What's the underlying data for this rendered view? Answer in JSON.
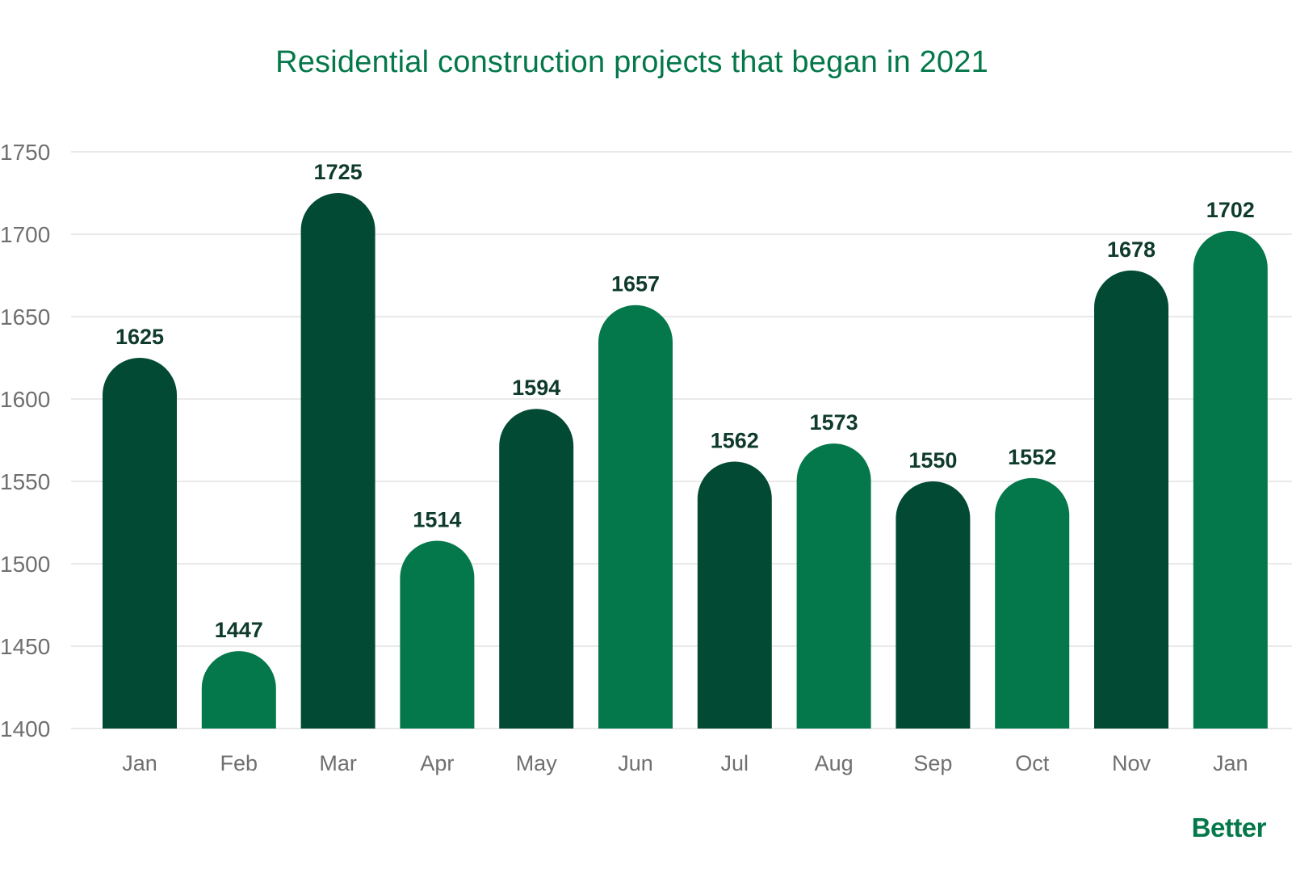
{
  "chart_data": {
    "type": "bar",
    "title": "Residential construction projects that began in 2021",
    "xlabel": "",
    "ylabel": "",
    "categories": [
      "Jan",
      "Feb",
      "Mar",
      "Apr",
      "May",
      "Jun",
      "Jul",
      "Aug",
      "Sep",
      "Oct",
      "Nov",
      "Jan"
    ],
    "values": [
      1625,
      1447,
      1725,
      1514,
      1594,
      1657,
      1562,
      1573,
      1550,
      1552,
      1678,
      1702
    ],
    "ylim": [
      1400,
      1750
    ],
    "yticks": [
      1400,
      1450,
      1500,
      1550,
      1600,
      1650,
      1700,
      1750
    ],
    "grid": true,
    "legend": "none",
    "data_labels": true,
    "colors": {
      "dark": "#024A34",
      "medium": "#04784A",
      "title": "#04784A",
      "label": "#0f3b2b",
      "axis_text": "#6f6f6f",
      "grid": "#e2e2e2"
    },
    "bar_color_keys": [
      "dark",
      "medium",
      "dark",
      "medium",
      "dark",
      "medium",
      "dark",
      "medium",
      "dark",
      "medium",
      "dark",
      "medium"
    ]
  },
  "brand": {
    "logo_text": "Better"
  }
}
